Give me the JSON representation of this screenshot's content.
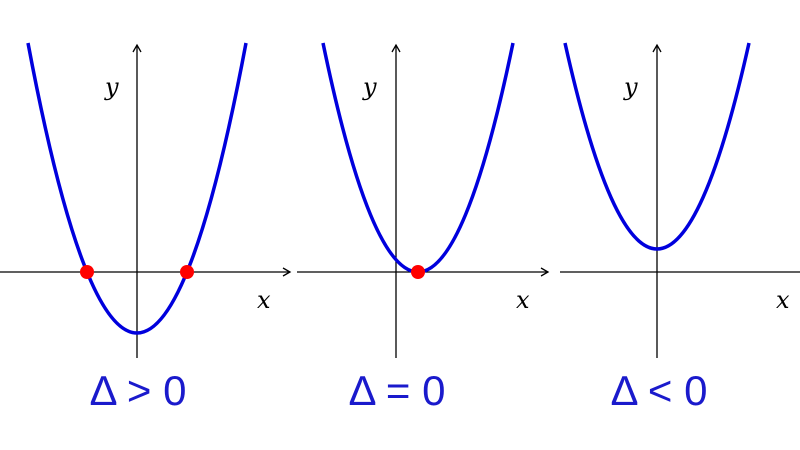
{
  "panels": [
    {
      "y_label": "y",
      "x_label": "x",
      "caption": "Δ > 0"
    },
    {
      "y_label": "y",
      "x_label": "x",
      "caption": "Δ = 0"
    },
    {
      "y_label": "y",
      "x_label": "x",
      "caption": "Δ < 0"
    }
  ]
}
